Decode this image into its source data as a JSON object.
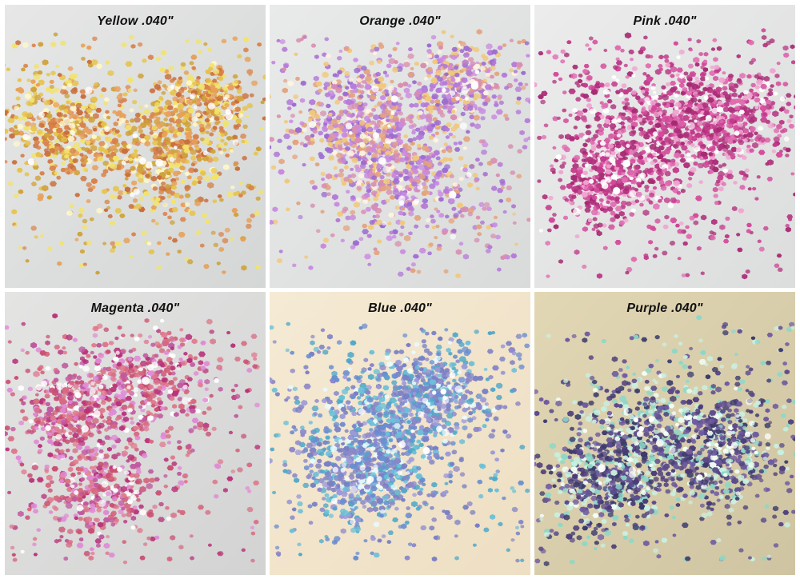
{
  "tiles": [
    {
      "label": "Yellow .040\"",
      "bg": "#d4d7d6",
      "bg2": "#e6e7e6",
      "colors": [
        "#d9824a",
        "#e8a05a",
        "#cfa23a",
        "#f2e36a",
        "#e6c34a",
        "#c96e3c",
        "#fff6c8"
      ],
      "density": 0.9
    },
    {
      "label": "Orange .040\"",
      "bg": "#d9dbda",
      "bg2": "#e9eaea",
      "colors": [
        "#b47ad8",
        "#c98ae0",
        "#d88fb0",
        "#e3a37e",
        "#f0c87a",
        "#9c6cd0",
        "#fff3e0"
      ],
      "density": 1.0
    },
    {
      "label": "Pink .040\"",
      "bg": "#dcdddd",
      "bg2": "#ececec",
      "colors": [
        "#c23a8a",
        "#d4499a",
        "#b02f7c",
        "#e06ab0",
        "#a52a72",
        "#f0a4d0",
        "#ffffff"
      ],
      "density": 1.0
    },
    {
      "label": "Magenta .040\"",
      "bg": "#d2d3d2",
      "bg2": "#e4e4e3",
      "colors": [
        "#d66a80",
        "#e07a8e",
        "#c94f73",
        "#b8327a",
        "#e08ad6",
        "#c05aa0",
        "#ffffff"
      ],
      "density": 0.9
    },
    {
      "label": "Blue .040\"",
      "bg": "#eedfc3",
      "bg2": "#f5ead4",
      "colors": [
        "#7a7fc4",
        "#6a8ed0",
        "#8c86c8",
        "#4fa8c8",
        "#6bc0d8",
        "#9c9ad8",
        "#e8fbff"
      ],
      "density": 1.0
    },
    {
      "label": "Purple .040\"",
      "bg": "#cfc4a2",
      "bg2": "#e2d7b4",
      "colors": [
        "#5a4a8a",
        "#3a3a6a",
        "#6e5aa0",
        "#8ad8c8",
        "#c8f0e0",
        "#4a3c78",
        "#f2fff6"
      ],
      "density": 1.0
    }
  ]
}
